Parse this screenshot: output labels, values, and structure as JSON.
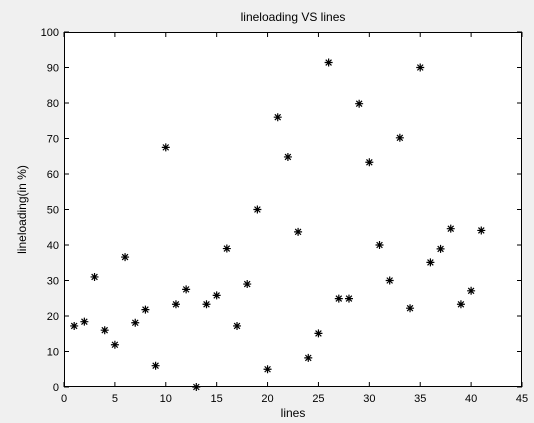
{
  "chart_data": {
    "type": "scatter",
    "title": "lineloading VS lines",
    "xlabel": "lines",
    "ylabel": "lineloading(in %)",
    "xlim": [
      0,
      45
    ],
    "ylim": [
      0,
      100
    ],
    "xticks": [
      0,
      5,
      10,
      15,
      20,
      25,
      30,
      35,
      40,
      45
    ],
    "yticks": [
      0,
      10,
      20,
      30,
      40,
      50,
      60,
      70,
      80,
      90,
      100
    ],
    "grid": false,
    "marker": "asterisk",
    "marker_color": "#000000",
    "x": [
      1,
      2,
      3,
      4,
      5,
      6,
      7,
      8,
      9,
      10,
      11,
      12,
      13,
      14,
      15,
      16,
      17,
      18,
      19,
      20,
      21,
      22,
      23,
      24,
      25,
      26,
      27,
      28,
      29,
      30,
      31,
      32,
      33,
      34,
      35,
      36,
      37,
      38,
      39,
      40,
      41
    ],
    "y": [
      17.2,
      18.4,
      31.0,
      16.0,
      11.9,
      36.6,
      18.1,
      21.8,
      6.0,
      67.5,
      23.3,
      27.5,
      0.0,
      23.3,
      25.8,
      39.0,
      17.2,
      29.0,
      50.0,
      5.0,
      76.0,
      64.8,
      43.7,
      8.2,
      15.1,
      91.4,
      24.9,
      24.9,
      79.8,
      63.3,
      40.0,
      30.0,
      70.2,
      22.2,
      90.0,
      35.1,
      38.9,
      44.6,
      23.3,
      27.1,
      44.1
    ]
  }
}
